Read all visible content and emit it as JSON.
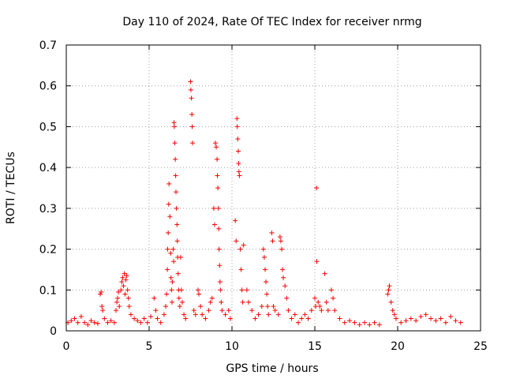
{
  "chart_data": {
    "type": "scatter",
    "title": "Day 110 of 2024, Rate Of TEC Index for receiver nrmg",
    "xlabel": "GPS time / hours",
    "ylabel": "ROTI / TECUs",
    "xlim": [
      0,
      25
    ],
    "ylim": [
      0,
      0.7
    ],
    "xticks": [
      0,
      5,
      10,
      15,
      20,
      25
    ],
    "xtick_labels": [
      "0",
      "5",
      "10",
      "15",
      "20",
      "25"
    ],
    "yticks": [
      0,
      0.1,
      0.2,
      0.3,
      0.4,
      0.5,
      0.6,
      0.7
    ],
    "ytick_labels": [
      "0",
      "0.1",
      "0.2",
      "0.3",
      "0.4",
      "0.5",
      "0.6",
      "0.7"
    ],
    "grid": true,
    "marker": "plus",
    "color": "#ff0000",
    "series": [
      {
        "name": "ROTI",
        "points": [
          [
            0.1,
            0.02
          ],
          [
            0.3,
            0.025
          ],
          [
            0.5,
            0.03
          ],
          [
            0.7,
            0.02
          ],
          [
            0.9,
            0.035
          ],
          [
            1.1,
            0.02
          ],
          [
            1.3,
            0.015
          ],
          [
            1.5,
            0.025
          ],
          [
            1.7,
            0.02
          ],
          [
            1.9,
            0.018
          ],
          [
            2.05,
            0.09
          ],
          [
            2.1,
            0.095
          ],
          [
            2.15,
            0.06
          ],
          [
            2.2,
            0.05
          ],
          [
            2.3,
            0.03
          ],
          [
            2.5,
            0.02
          ],
          [
            2.7,
            0.025
          ],
          [
            2.9,
            0.02
          ],
          [
            3.0,
            0.05
          ],
          [
            3.05,
            0.07
          ],
          [
            3.1,
            0.08
          ],
          [
            3.15,
            0.095
          ],
          [
            3.2,
            0.06
          ],
          [
            3.3,
            0.1
          ],
          [
            3.35,
            0.12
          ],
          [
            3.4,
            0.13
          ],
          [
            3.45,
            0.11
          ],
          [
            3.5,
            0.14
          ],
          [
            3.55,
            0.09
          ],
          [
            3.6,
            0.125
          ],
          [
            3.65,
            0.135
          ],
          [
            3.7,
            0.1
          ],
          [
            3.75,
            0.08
          ],
          [
            3.8,
            0.06
          ],
          [
            3.9,
            0.04
          ],
          [
            4.1,
            0.03
          ],
          [
            4.3,
            0.025
          ],
          [
            4.5,
            0.02
          ],
          [
            4.7,
            0.03
          ],
          [
            4.9,
            0.02
          ],
          [
            5.1,
            0.035
          ],
          [
            5.3,
            0.08
          ],
          [
            5.4,
            0.05
          ],
          [
            5.5,
            0.03
          ],
          [
            5.7,
            0.02
          ],
          [
            5.9,
            0.04
          ],
          [
            6.0,
            0.06
          ],
          [
            6.05,
            0.09
          ],
          [
            6.1,
            0.15
          ],
          [
            6.12,
            0.2
          ],
          [
            6.15,
            0.24
          ],
          [
            6.18,
            0.31
          ],
          [
            6.2,
            0.36
          ],
          [
            6.25,
            0.28
          ],
          [
            6.3,
            0.19
          ],
          [
            6.32,
            0.13
          ],
          [
            6.35,
            0.1
          ],
          [
            6.38,
            0.07
          ],
          [
            6.4,
            0.12
          ],
          [
            6.45,
            0.2
          ],
          [
            6.48,
            0.17
          ],
          [
            6.5,
            0.51
          ],
          [
            6.52,
            0.5
          ],
          [
            6.55,
            0.46
          ],
          [
            6.58,
            0.42
          ],
          [
            6.6,
            0.38
          ],
          [
            6.62,
            0.34
          ],
          [
            6.65,
            0.3
          ],
          [
            6.68,
            0.26
          ],
          [
            6.7,
            0.22
          ],
          [
            6.72,
            0.18
          ],
          [
            6.75,
            0.14
          ],
          [
            6.78,
            0.1
          ],
          [
            6.8,
            0.08
          ],
          [
            6.85,
            0.06
          ],
          [
            6.9,
            0.18
          ],
          [
            6.95,
            0.1
          ],
          [
            7.0,
            0.07
          ],
          [
            7.1,
            0.04
          ],
          [
            7.2,
            0.03
          ],
          [
            7.5,
            0.61
          ],
          [
            7.52,
            0.59
          ],
          [
            7.55,
            0.57
          ],
          [
            7.58,
            0.53
          ],
          [
            7.6,
            0.5
          ],
          [
            7.62,
            0.46
          ],
          [
            7.7,
            0.05
          ],
          [
            7.8,
            0.04
          ],
          [
            7.95,
            0.1
          ],
          [
            8.0,
            0.09
          ],
          [
            8.1,
            0.06
          ],
          [
            8.2,
            0.04
          ],
          [
            8.4,
            0.03
          ],
          [
            8.6,
            0.05
          ],
          [
            8.7,
            0.07
          ],
          [
            8.8,
            0.08
          ],
          [
            8.9,
            0.3
          ],
          [
            8.95,
            0.26
          ],
          [
            9.0,
            0.46
          ],
          [
            9.05,
            0.45
          ],
          [
            9.1,
            0.42
          ],
          [
            9.12,
            0.38
          ],
          [
            9.15,
            0.35
          ],
          [
            9.18,
            0.3
          ],
          [
            9.2,
            0.25
          ],
          [
            9.22,
            0.2
          ],
          [
            9.25,
            0.16
          ],
          [
            9.28,
            0.12
          ],
          [
            9.3,
            0.1
          ],
          [
            9.35,
            0.07
          ],
          [
            9.4,
            0.05
          ],
          [
            9.6,
            0.04
          ],
          [
            9.8,
            0.05
          ],
          [
            9.9,
            0.03
          ],
          [
            10.2,
            0.27
          ],
          [
            10.25,
            0.22
          ],
          [
            10.3,
            0.52
          ],
          [
            10.32,
            0.5
          ],
          [
            10.35,
            0.47
          ],
          [
            10.38,
            0.44
          ],
          [
            10.4,
            0.41
          ],
          [
            10.42,
            0.39
          ],
          [
            10.45,
            0.38
          ],
          [
            10.5,
            0.2
          ],
          [
            10.55,
            0.15
          ],
          [
            10.6,
            0.1
          ],
          [
            10.65,
            0.07
          ],
          [
            10.7,
            0.21
          ],
          [
            10.9,
            0.1
          ],
          [
            11.0,
            0.07
          ],
          [
            11.2,
            0.05
          ],
          [
            11.4,
            0.03
          ],
          [
            11.6,
            0.04
          ],
          [
            11.8,
            0.06
          ],
          [
            11.9,
            0.2
          ],
          [
            11.95,
            0.18
          ],
          [
            12.0,
            0.15
          ],
          [
            12.05,
            0.12
          ],
          [
            12.1,
            0.09
          ],
          [
            12.15,
            0.06
          ],
          [
            12.2,
            0.04
          ],
          [
            12.4,
            0.24
          ],
          [
            12.45,
            0.22
          ],
          [
            12.5,
            0.06
          ],
          [
            12.6,
            0.05
          ],
          [
            12.8,
            0.04
          ],
          [
            12.9,
            0.23
          ],
          [
            12.95,
            0.22
          ],
          [
            13.0,
            0.2
          ],
          [
            13.05,
            0.15
          ],
          [
            13.1,
            0.13
          ],
          [
            13.2,
            0.11
          ],
          [
            13.3,
            0.08
          ],
          [
            13.4,
            0.05
          ],
          [
            13.6,
            0.03
          ],
          [
            13.8,
            0.04
          ],
          [
            14.0,
            0.02
          ],
          [
            14.2,
            0.03
          ],
          [
            14.4,
            0.04
          ],
          [
            14.6,
            0.03
          ],
          [
            14.8,
            0.05
          ],
          [
            15.0,
            0.08
          ],
          [
            15.05,
            0.06
          ],
          [
            15.1,
            0.35
          ],
          [
            15.12,
            0.17
          ],
          [
            15.2,
            0.07
          ],
          [
            15.3,
            0.06
          ],
          [
            15.4,
            0.05
          ],
          [
            15.6,
            0.14
          ],
          [
            15.7,
            0.07
          ],
          [
            15.8,
            0.05
          ],
          [
            16.0,
            0.1
          ],
          [
            16.1,
            0.08
          ],
          [
            16.2,
            0.05
          ],
          [
            16.5,
            0.03
          ],
          [
            16.8,
            0.02
          ],
          [
            17.1,
            0.025
          ],
          [
            17.4,
            0.02
          ],
          [
            17.7,
            0.015
          ],
          [
            18.0,
            0.02
          ],
          [
            18.3,
            0.015
          ],
          [
            18.6,
            0.02
          ],
          [
            18.9,
            0.015
          ],
          [
            19.4,
            0.09
          ],
          [
            19.45,
            0.1
          ],
          [
            19.5,
            0.11
          ],
          [
            19.6,
            0.07
          ],
          [
            19.7,
            0.05
          ],
          [
            19.8,
            0.04
          ],
          [
            19.9,
            0.03
          ],
          [
            20.2,
            0.02
          ],
          [
            20.5,
            0.025
          ],
          [
            20.8,
            0.03
          ],
          [
            21.1,
            0.025
          ],
          [
            21.4,
            0.035
          ],
          [
            21.7,
            0.04
          ],
          [
            22.0,
            0.03
          ],
          [
            22.3,
            0.025
          ],
          [
            22.6,
            0.03
          ],
          [
            22.9,
            0.02
          ],
          [
            23.2,
            0.035
          ],
          [
            23.5,
            0.025
          ],
          [
            23.8,
            0.02
          ]
        ]
      }
    ]
  }
}
